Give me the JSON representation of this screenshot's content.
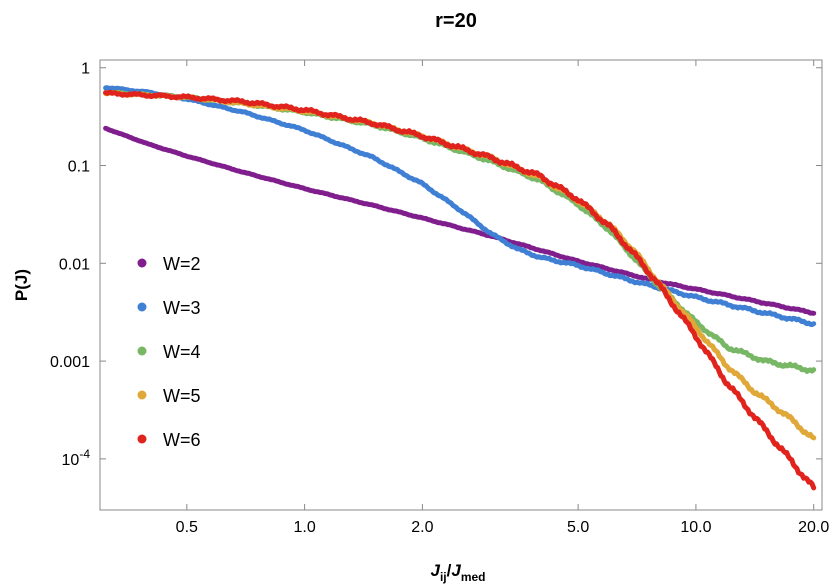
{
  "chart_data": {
    "type": "line",
    "title": "r=20",
    "xlabel": {
      "main": "J",
      "sub1": "ij",
      "sep": "/",
      "main2": "J",
      "sub2": "med"
    },
    "ylabel": "P(J)",
    "xscale": "log",
    "yscale": "log",
    "xlim": [
      0.3,
      21
    ],
    "ylim": [
      3e-05,
      1.2
    ],
    "x_ticks": [
      {
        "value": 0.5,
        "label": "0.5"
      },
      {
        "value": 1.0,
        "label": "1.0"
      },
      {
        "value": 2.0,
        "label": "2.0"
      },
      {
        "value": 5.0,
        "label": "5.0"
      },
      {
        "value": 10.0,
        "label": "10.0"
      },
      {
        "value": 20.0,
        "label": "20.0"
      }
    ],
    "y_ticks": [
      {
        "value": 1,
        "label": "1"
      },
      {
        "value": 0.1,
        "label": "0.1"
      },
      {
        "value": 0.01,
        "label": "0.01"
      },
      {
        "value": 0.001,
        "label": "0.001"
      },
      {
        "value": 0.0001,
        "label": "10",
        "exponent": "-4"
      }
    ],
    "legend_position": "center-left",
    "series": [
      {
        "name": "W=2",
        "color": "#7f1e8c",
        "x": [
          0.31,
          0.4,
          0.5,
          0.7,
          1.0,
          1.5,
          2.0,
          3.0,
          5.0,
          8.0,
          12.0,
          20.0
        ],
        "y": [
          0.24,
          0.165,
          0.125,
          0.085,
          0.058,
          0.039,
          0.029,
          0.019,
          0.0105,
          0.0065,
          0.0047,
          0.0031
        ]
      },
      {
        "name": "W=3",
        "color": "#3f7fd4",
        "x": [
          0.31,
          0.4,
          0.5,
          0.7,
          1.0,
          1.5,
          2.0,
          2.5,
          3.0,
          3.5,
          4.0,
          5.0,
          7.0,
          10.0,
          14.0,
          20.0
        ],
        "y": [
          0.63,
          0.56,
          0.48,
          0.35,
          0.23,
          0.12,
          0.065,
          0.035,
          0.02,
          0.014,
          0.0115,
          0.0095,
          0.0065,
          0.0045,
          0.0033,
          0.0024
        ]
      },
      {
        "name": "W=4",
        "color": "#78b765",
        "x": [
          0.31,
          0.5,
          0.7,
          1.0,
          1.5,
          2.0,
          3.0,
          4.0,
          5.0,
          6.0,
          7.0,
          8.0,
          10.0,
          12.0,
          15.0,
          20.0
        ],
        "y": [
          0.56,
          0.5,
          0.43,
          0.35,
          0.26,
          0.19,
          0.11,
          0.07,
          0.04,
          0.022,
          0.011,
          0.006,
          0.0025,
          0.0014,
          0.001,
          0.0008
        ]
      },
      {
        "name": "W=5",
        "color": "#e0a838",
        "x": [
          0.31,
          0.5,
          0.7,
          1.0,
          1.5,
          2.0,
          3.0,
          4.0,
          5.0,
          6.0,
          7.0,
          8.0,
          10.0,
          12.0,
          14.0,
          17.0,
          20.0
        ],
        "y": [
          0.55,
          0.5,
          0.43,
          0.36,
          0.27,
          0.2,
          0.12,
          0.075,
          0.044,
          0.025,
          0.013,
          0.0065,
          0.0022,
          0.0009,
          0.0005,
          0.00028,
          0.00016
        ]
      },
      {
        "name": "W=6",
        "color": "#e0231d",
        "x": [
          0.31,
          0.5,
          0.7,
          1.0,
          1.5,
          2.0,
          3.0,
          4.0,
          5.0,
          6.0,
          7.0,
          8.0,
          10.0,
          12.0,
          14.0,
          17.0,
          20.0
        ],
        "y": [
          0.55,
          0.5,
          0.45,
          0.37,
          0.27,
          0.2,
          0.12,
          0.078,
          0.045,
          0.024,
          0.012,
          0.0062,
          0.0018,
          0.0006,
          0.00028,
          0.00011,
          5e-05
        ]
      }
    ]
  }
}
